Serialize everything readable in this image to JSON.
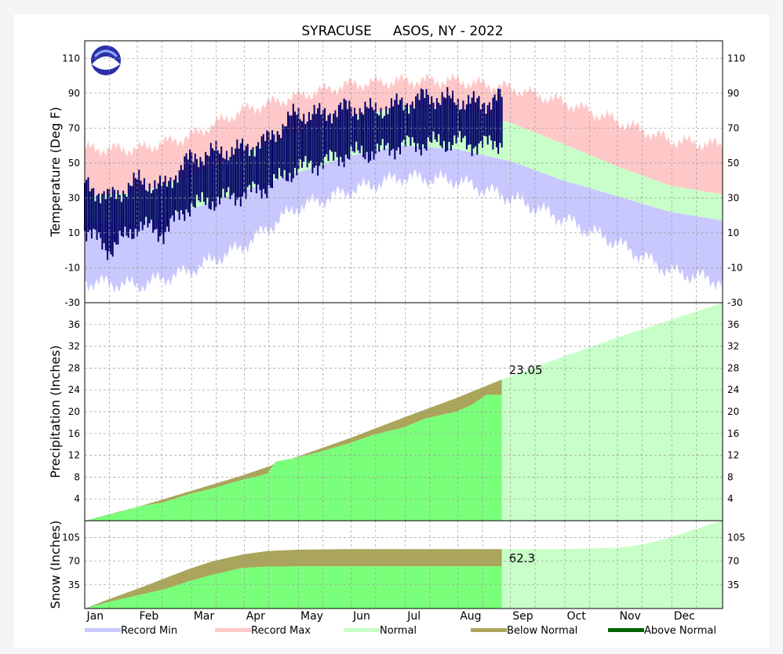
{
  "chart_data": {
    "title": "SYRACUSE     ASOS, NY - 2022",
    "x": {
      "months": [
        "Jan",
        "Feb",
        "Mar",
        "Apr",
        "May",
        "Jun",
        "Jul",
        "Aug",
        "Sep",
        "Oct",
        "Nov",
        "Dec"
      ],
      "day_range": [
        1,
        365
      ],
      "observed_through_day": 239
    },
    "colors": {
      "record_min": "#c8c8ff",
      "record_max": "#ffc8c8",
      "normal": "#c8ffc8",
      "below_normal": "#aaa55a",
      "above_normal": "#006400",
      "observed_temp": "#000066",
      "observed_precip": "#7aff7a"
    },
    "panels": [
      {
        "type": "area",
        "name": "temperature",
        "ylabel": "Temperature (Deg F)",
        "ylim": [
          -30,
          120
        ],
        "yticks": [
          -30,
          -10,
          10,
          30,
          50,
          70,
          90,
          110
        ],
        "series": [
          {
            "key": "record_max",
            "x": [
              1,
              32,
              60,
              91,
              121,
              152,
              182,
              213,
              244,
              274,
              305,
              335,
              365
            ],
            "values": [
              58,
              58,
              65,
              80,
              88,
              95,
              97,
              97,
              93,
              85,
              74,
              63,
              60
            ]
          },
          {
            "key": "normal_high",
            "x": [
              1,
              32,
              60,
              91,
              121,
              152,
              182,
              213,
              244,
              274,
              305,
              335,
              365
            ],
            "values": [
              31,
              33,
              42,
              55,
              67,
              76,
              82,
              81,
              73,
              61,
              48,
              37,
              32
            ]
          },
          {
            "key": "normal_low",
            "x": [
              1,
              32,
              60,
              91,
              121,
              152,
              182,
              213,
              244,
              274,
              305,
              335,
              365
            ],
            "values": [
              16,
              16,
              23,
              34,
              44,
              54,
              60,
              58,
              51,
              40,
              31,
              22,
              17
            ]
          },
          {
            "key": "record_min",
            "x": [
              1,
              32,
              60,
              91,
              121,
              152,
              182,
              213,
              244,
              274,
              305,
              335,
              365
            ],
            "values": [
              -18,
              -20,
              -12,
              2,
              24,
              34,
              42,
              40,
              30,
              18,
              4,
              -12,
              -18
            ]
          },
          {
            "key": "observed_high",
            "x": [
              1,
              15,
              32,
              46,
              60,
              74,
              91,
              105,
              121,
              135,
              152,
              166,
              182,
              196,
              213,
              227,
              239
            ],
            "values": [
              38,
              30,
              40,
              36,
              52,
              56,
              58,
              63,
              78,
              78,
              82,
              80,
              84,
              88,
              86,
              84,
              88
            ]
          },
          {
            "key": "observed_low",
            "x": [
              1,
              15,
              32,
              46,
              60,
              74,
              91,
              105,
              121,
              135,
              152,
              166,
              182,
              196,
              213,
              227,
              239
            ],
            "values": [
              12,
              0,
              14,
              10,
              25,
              28,
              32,
              36,
              46,
              50,
              55,
              56,
              60,
              61,
              62,
              60,
              62
            ]
          }
        ]
      },
      {
        "type": "area",
        "name": "precipitation",
        "ylabel": "Precipitation (Inches)",
        "ylim": [
          0,
          40
        ],
        "yticks": [
          4,
          8,
          12,
          16,
          20,
          24,
          28,
          32,
          36
        ],
        "annotation": "23.05",
        "series": [
          {
            "key": "normal",
            "x": [
              1,
              32,
              60,
              91,
              121,
              152,
              182,
              213,
              239,
              244,
              274,
              305,
              335,
              365
            ],
            "values": [
              0,
              2.6,
              5.3,
              8.3,
              11.6,
              15.1,
              18.8,
              22.5,
              25.9,
              26.5,
              30.1,
              33.6,
              36.8,
              40
            ]
          },
          {
            "key": "observed",
            "x": [
              1,
              20,
              32,
              45,
              60,
              75,
              91,
              105,
              110,
              121,
              135,
              152,
              166,
              182,
              196,
              213,
              222,
              230,
              239
            ],
            "values": [
              0,
              1.5,
              2.6,
              3.3,
              4.8,
              6.0,
              7.5,
              8.6,
              10.8,
              11.5,
              12.6,
              14.2,
              15.8,
              17.0,
              18.8,
              20.0,
              21.3,
              23.05,
              23.05
            ]
          }
        ]
      },
      {
        "type": "area",
        "name": "snow",
        "ylabel": "Snow (Inches)",
        "ylim": [
          0,
          130
        ],
        "yticks": [
          35,
          70,
          105
        ],
        "annotation": "62.3",
        "series": [
          {
            "key": "normal",
            "x": [
              1,
              15,
              32,
              46,
              60,
              74,
              91,
              105,
              121,
              152,
              182,
              213,
              239,
              244,
              274,
              305,
              320,
              335,
              350,
              365
            ],
            "values": [
              0,
              14,
              30,
              44,
              58,
              70,
              80,
              85,
              87,
              88,
              88,
              88,
              88,
              88,
              88,
              90,
              95,
              105,
              118,
              130
            ]
          },
          {
            "key": "observed",
            "x": [
              1,
              15,
              32,
              46,
              60,
              74,
              91,
              105,
              121,
              239
            ],
            "values": [
              0,
              10,
              20,
              28,
              40,
              50,
              60,
              62,
              62.3,
              62.3
            ]
          }
        ]
      }
    ],
    "legend": {
      "placement": "bottom",
      "items": [
        {
          "key": "record_min",
          "label": "Record Min"
        },
        {
          "key": "record_max",
          "label": "Record Max"
        },
        {
          "key": "normal",
          "label": "Normal"
        },
        {
          "key": "below_normal",
          "label": "Below Normal"
        },
        {
          "key": "above_normal",
          "label": "Above Normal"
        }
      ]
    },
    "logo": "noaa-logo"
  }
}
